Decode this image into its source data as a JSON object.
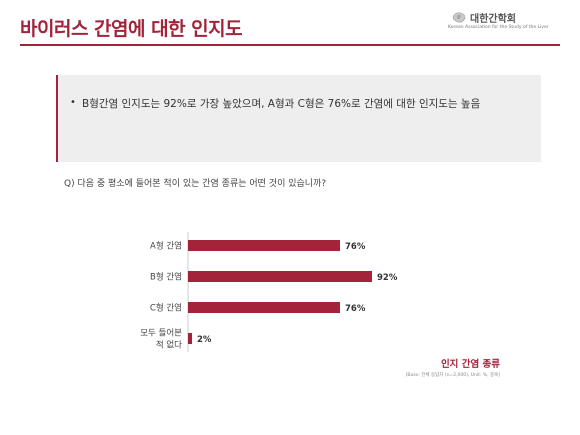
{
  "header": {
    "title": "바이러스 간염에 대한 인지도",
    "logo_name": "대한간학회",
    "logo_subtitle": "Korean Association for the Study of the Liver"
  },
  "summary": {
    "bullet": "•",
    "text": "B형간염 인지도는 92%로 가장 높았으며, A형과 C형은 76%로 간염에 대한 인지도는 높음"
  },
  "question": "Q) 다음 중 평소에 들어본 적이 있는 간염 종류는 어떤 것이 있습니까?",
  "chart_data": {
    "type": "bar",
    "orientation": "horizontal",
    "categories": [
      "A형 간염",
      "B형 간염",
      "C형 간염",
      "모두 들어본\n적 없다"
    ],
    "values": [
      76,
      92,
      76,
      2
    ],
    "value_labels": [
      "76%",
      "92%",
      "76%",
      "2%"
    ],
    "unit": "%",
    "xlim": [
      0,
      100
    ],
    "series": [
      {
        "name": "인지 간염 종류",
        "values": [
          76,
          92,
          76,
          2
        ]
      }
    ],
    "bar_color": "#a2233a",
    "legend_position": "bottom-right",
    "grid": false
  },
  "legend_label": "인지 간염 종류",
  "base_note": "[Base: 전체 응답자 (n=2,000), Unit: %, 중복]"
}
